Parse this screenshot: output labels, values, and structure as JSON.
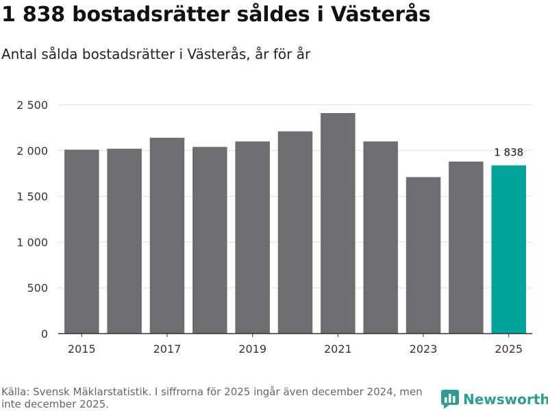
{
  "header": {
    "title": "1 838 bostadsrätter såldes i Västerås",
    "subtitle": "Antal sålda bostadsrätter i Västerås, år för år"
  },
  "footer": {
    "source": "Källa: Svensk Mäklarstatistik. I siffrorna för 2025 ingår även december 2024, men inte december 2025.",
    "brand": "Newsworthy"
  },
  "colors": {
    "bar": "#6e6d72",
    "highlight": "#00a49a",
    "grid": "#dddddd",
    "axis": "#333333",
    "brand": "#2e9c93"
  },
  "chart_data": {
    "type": "bar",
    "title": "1 838 bostadsrätter såldes i Västerås",
    "subtitle": "Antal sålda bostadsrätter i Västerås, år för år",
    "xlabel": "",
    "ylabel": "",
    "categories": [
      "2015",
      "2016",
      "2017",
      "2018",
      "2019",
      "2020",
      "2021",
      "2022",
      "2023",
      "2024",
      "2025"
    ],
    "values": [
      2010,
      2020,
      2140,
      2040,
      2100,
      2210,
      2410,
      2100,
      1710,
      1880,
      1838
    ],
    "ylim": [
      0,
      2500
    ],
    "yticks": [
      0,
      500,
      1000,
      1500,
      2000,
      2500
    ],
    "ytick_labels": [
      "0",
      "500",
      "1 000",
      "1 500",
      "2 000",
      "2 500"
    ],
    "xtick_labels_shown": [
      "2015",
      "2017",
      "2019",
      "2021",
      "2023",
      "2025"
    ],
    "highlight_category": "2025",
    "annotation": {
      "category": "2025",
      "label": "1 838"
    },
    "grid": true
  }
}
